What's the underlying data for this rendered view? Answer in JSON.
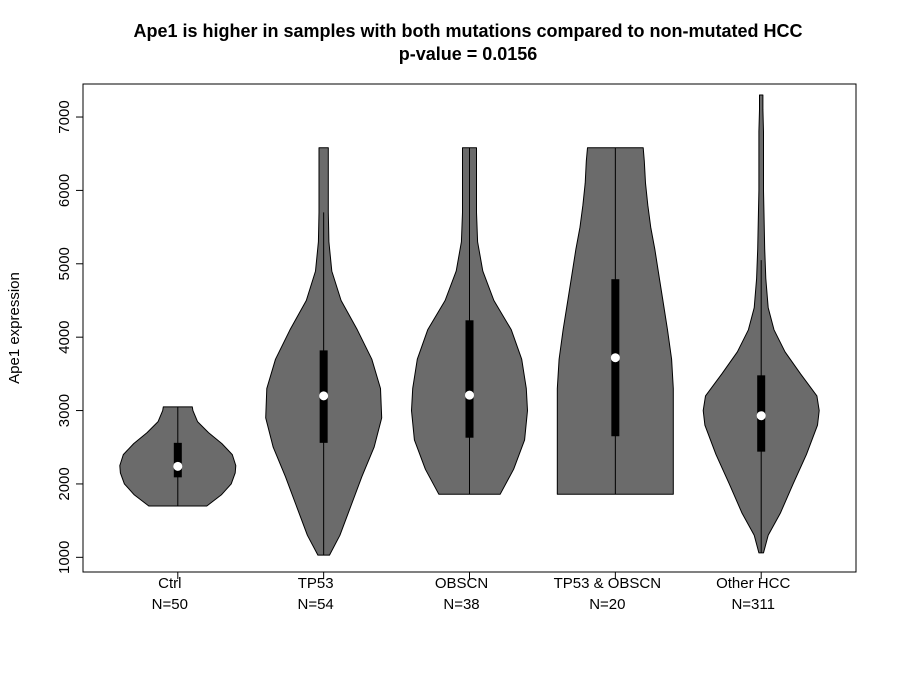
{
  "chart_data": {
    "type": "violin",
    "title": "Ape1 is higher in samples with both mutations compared to non-mutated HCC",
    "subtitle": "p-value = 0.0156",
    "ylabel": "Ape1 expression",
    "xlabel": "",
    "ylim": [
      800,
      7450
    ],
    "yticks": [
      1000,
      2000,
      3000,
      4000,
      5000,
      6000,
      7000
    ],
    "fill_color": "#6b6b6b",
    "groups": [
      {
        "label": "Ctrl",
        "n_label": "N=50",
        "min": 1700,
        "max": 3050,
        "q1": 2090,
        "median": 2240,
        "q3": 2560,
        "whisker_low": 1700,
        "whisker_high": 3050,
        "density": [
          [
            1700,
            0.5
          ],
          [
            1850,
            0.75
          ],
          [
            2000,
            0.92
          ],
          [
            2150,
            0.99
          ],
          [
            2250,
            1.0
          ],
          [
            2400,
            0.94
          ],
          [
            2550,
            0.76
          ],
          [
            2700,
            0.53
          ],
          [
            2850,
            0.34
          ],
          [
            3000,
            0.26
          ],
          [
            3050,
            0.25
          ]
        ]
      },
      {
        "label": "TP53",
        "n_label": "N=54",
        "min": 1030,
        "max": 6580,
        "q1": 2560,
        "median": 3200,
        "q3": 3820,
        "whisker_low": 1030,
        "whisker_high": 5700,
        "density": [
          [
            1030,
            0.1
          ],
          [
            1300,
            0.28
          ],
          [
            1700,
            0.47
          ],
          [
            2100,
            0.66
          ],
          [
            2500,
            0.87
          ],
          [
            2900,
            1.0
          ],
          [
            3300,
            0.98
          ],
          [
            3700,
            0.83
          ],
          [
            4100,
            0.58
          ],
          [
            4500,
            0.3
          ],
          [
            4900,
            0.14
          ],
          [
            5300,
            0.09
          ],
          [
            5700,
            0.08
          ],
          [
            6100,
            0.08
          ],
          [
            6400,
            0.08
          ],
          [
            6580,
            0.08
          ]
        ]
      },
      {
        "label": "OBSCN",
        "n_label": "N=38",
        "min": 1860,
        "max": 6580,
        "q1": 2630,
        "median": 3210,
        "q3": 4230,
        "whisker_low": 1860,
        "whisker_high": 6580,
        "density": [
          [
            1860,
            0.53
          ],
          [
            2200,
            0.76
          ],
          [
            2600,
            0.95
          ],
          [
            3000,
            1.0
          ],
          [
            3300,
            0.98
          ],
          [
            3700,
            0.9
          ],
          [
            4100,
            0.72
          ],
          [
            4500,
            0.42
          ],
          [
            4900,
            0.23
          ],
          [
            5300,
            0.14
          ],
          [
            5700,
            0.12
          ],
          [
            6100,
            0.12
          ],
          [
            6400,
            0.12
          ],
          [
            6580,
            0.12
          ]
        ]
      },
      {
        "label": "TP53 & OBSCN",
        "n_label": "N=20",
        "min": 1860,
        "max": 6580,
        "q1": 2650,
        "median": 3720,
        "q3": 4790,
        "whisker_low": 1860,
        "whisker_high": 6580,
        "density": [
          [
            1860,
            1.0
          ],
          [
            2500,
            1.0
          ],
          [
            3000,
            1.0
          ],
          [
            3300,
            1.0
          ],
          [
            3700,
            0.97
          ],
          [
            4100,
            0.9
          ],
          [
            4500,
            0.82
          ],
          [
            4800,
            0.76
          ],
          [
            5200,
            0.68
          ],
          [
            5500,
            0.61
          ],
          [
            5800,
            0.56
          ],
          [
            6100,
            0.52
          ],
          [
            6400,
            0.5
          ],
          [
            6580,
            0.48
          ]
        ]
      },
      {
        "label": "Other HCC",
        "n_label": "N=311",
        "min": 1060,
        "max": 7300,
        "q1": 2440,
        "median": 2930,
        "q3": 3480,
        "whisker_low": 1060,
        "whisker_high": 5050,
        "density": [
          [
            1060,
            0.04
          ],
          [
            1300,
            0.12
          ],
          [
            1600,
            0.33
          ],
          [
            2000,
            0.55
          ],
          [
            2400,
            0.78
          ],
          [
            2800,
            0.97
          ],
          [
            3000,
            1.0
          ],
          [
            3200,
            0.96
          ],
          [
            3500,
            0.68
          ],
          [
            3800,
            0.41
          ],
          [
            4100,
            0.22
          ],
          [
            4400,
            0.12
          ],
          [
            4800,
            0.08
          ],
          [
            5200,
            0.06
          ],
          [
            5600,
            0.05
          ],
          [
            6000,
            0.04
          ],
          [
            6400,
            0.04
          ],
          [
            6800,
            0.04
          ],
          [
            7100,
            0.03
          ],
          [
            7300,
            0.03
          ]
        ]
      }
    ]
  }
}
